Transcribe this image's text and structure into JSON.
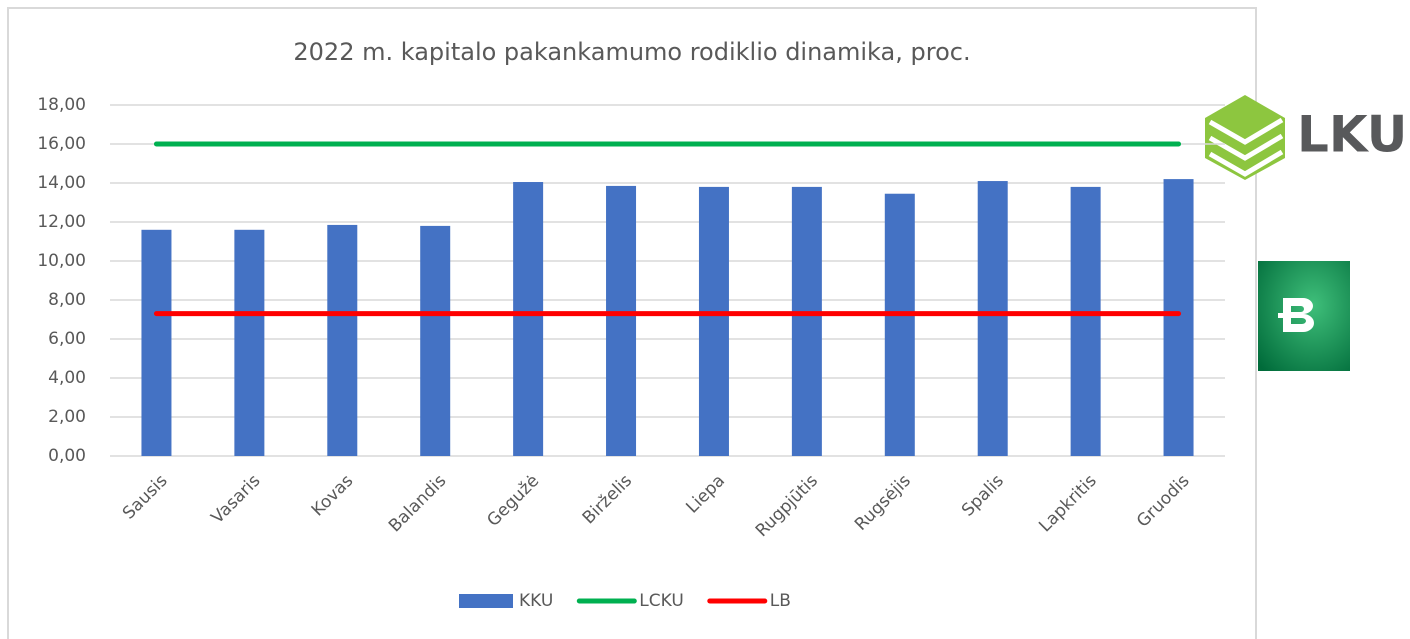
{
  "chart_data": {
    "type": "bar",
    "title": "2022 m. kapitalo pakankamumo rodiklio dinamika, proc.",
    "categories": [
      "Sausis",
      "Vasaris",
      "Kovas",
      "Balandis",
      "Gegužė",
      "Birželis",
      "Liepa",
      "Rugpjūtis",
      "Rugsėjis",
      "Spalis",
      "Lapkritis",
      "Gruodis"
    ],
    "series": [
      {
        "name": "KKU",
        "type": "bar",
        "color": "#4472c4",
        "values": [
          11.6,
          11.6,
          11.85,
          11.8,
          14.05,
          13.85,
          13.8,
          13.8,
          13.45,
          14.1,
          13.8,
          14.2
        ]
      },
      {
        "name": "LCKU",
        "type": "line",
        "color": "#00b050",
        "values": [
          16,
          16,
          16,
          16,
          16,
          16,
          16,
          16,
          16,
          16,
          16,
          16
        ]
      },
      {
        "name": "LB",
        "type": "line",
        "color": "#ff0000",
        "values": [
          7.3,
          7.3,
          7.3,
          7.3,
          7.3,
          7.3,
          7.3,
          7.3,
          7.3,
          7.3,
          7.3,
          7.3
        ]
      }
    ],
    "ylim": [
      0,
      18
    ],
    "yticks": [
      {
        "value": 0,
        "label": "0,00"
      },
      {
        "value": 2,
        "label": "2,00"
      },
      {
        "value": 4,
        "label": "4,00"
      },
      {
        "value": 6,
        "label": "6,00"
      },
      {
        "value": 8,
        "label": "8,00"
      },
      {
        "value": 10,
        "label": "10,00"
      },
      {
        "value": 12,
        "label": "12,00"
      },
      {
        "value": 14,
        "label": "14,00"
      },
      {
        "value": 16,
        "label": "16,00"
      },
      {
        "value": 18,
        "label": "18,00"
      }
    ],
    "grid": true,
    "legend": "bottom"
  },
  "logo": {
    "text": "LKU"
  }
}
